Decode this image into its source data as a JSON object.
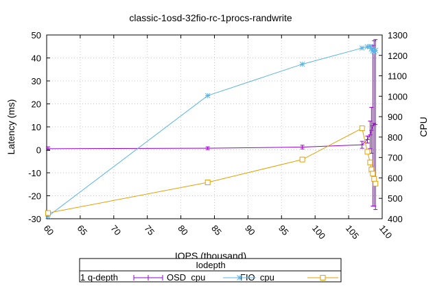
{
  "chart_data": {
    "type": "line",
    "title": "classic-1osd-32fio-rc-1procs-randwrite",
    "xlabel": "IOPS (thousand)",
    "ylabel": "Latency (ms)",
    "y2label": "CPU",
    "xlim": [
      60,
      110
    ],
    "ylim": [
      -30,
      50
    ],
    "y2lim": [
      400,
      1300
    ],
    "xticks": [
      "60",
      "65",
      "70",
      "75",
      "80",
      "85",
      "90",
      "95",
      "100",
      "105",
      "110"
    ],
    "yticks": [
      "-30",
      "-20",
      "-10",
      "0",
      "10",
      "20",
      "30",
      "40",
      "50"
    ],
    "y2ticks": [
      "400",
      "500",
      "600",
      "700",
      "800",
      "900",
      "1000",
      "1100",
      "1200",
      "1300"
    ],
    "grid": true,
    "legend": {
      "title": "Iodepth",
      "placement": "bottom-center",
      "entries": [
        "1 q-depth",
        "OSD_cpu",
        "FIO_cpu"
      ]
    },
    "series": [
      {
        "name": "1 q-depth",
        "axis": "y",
        "marker": "errorbar",
        "color": "#9400d3",
        "points": [
          {
            "x": 60.2,
            "y": 0.5,
            "err": 0.8
          },
          {
            "x": 84.0,
            "y": 0.7,
            "err": 0.6
          },
          {
            "x": 98.1,
            "y": 1.2,
            "err": 0.8
          },
          {
            "x": 107.0,
            "y": 2.2,
            "err": 1.5
          },
          {
            "x": 107.8,
            "y": 4.5,
            "err": 1.5
          },
          {
            "x": 108.2,
            "y": 6.5,
            "err": 6.0
          },
          {
            "x": 108.4,
            "y": 8.5,
            "err": 10.0
          },
          {
            "x": 108.6,
            "y": 10.5,
            "err": 35.0
          },
          {
            "x": 108.8,
            "y": 11.5,
            "err": 36.0
          },
          {
            "x": 109.0,
            "y": 11.0,
            "err": 37.0
          }
        ]
      },
      {
        "name": "OSD_cpu",
        "axis": "y2",
        "marker": "star",
        "color": "#56b4e9",
        "points": [
          {
            "x": 60.2,
            "y": 412
          },
          {
            "x": 84.0,
            "y": 1003
          },
          {
            "x": 98.1,
            "y": 1157
          },
          {
            "x": 107.0,
            "y": 1236
          },
          {
            "x": 107.8,
            "y": 1242
          },
          {
            "x": 108.2,
            "y": 1244
          },
          {
            "x": 108.4,
            "y": 1232
          },
          {
            "x": 108.6,
            "y": 1222
          },
          {
            "x": 108.8,
            "y": 1218
          },
          {
            "x": 109.0,
            "y": 1225
          }
        ]
      },
      {
        "name": "FIO_cpu",
        "axis": "y2",
        "marker": "square",
        "color": "#e69f00",
        "points": [
          {
            "x": 60.2,
            "y": 428
          },
          {
            "x": 84.0,
            "y": 578
          },
          {
            "x": 98.1,
            "y": 690
          },
          {
            "x": 107.0,
            "y": 843
          },
          {
            "x": 107.8,
            "y": 728
          },
          {
            "x": 108.2,
            "y": 676
          },
          {
            "x": 108.4,
            "y": 641
          },
          {
            "x": 108.6,
            "y": 621
          },
          {
            "x": 108.8,
            "y": 595
          },
          {
            "x": 109.0,
            "y": 572
          }
        ]
      }
    ]
  }
}
